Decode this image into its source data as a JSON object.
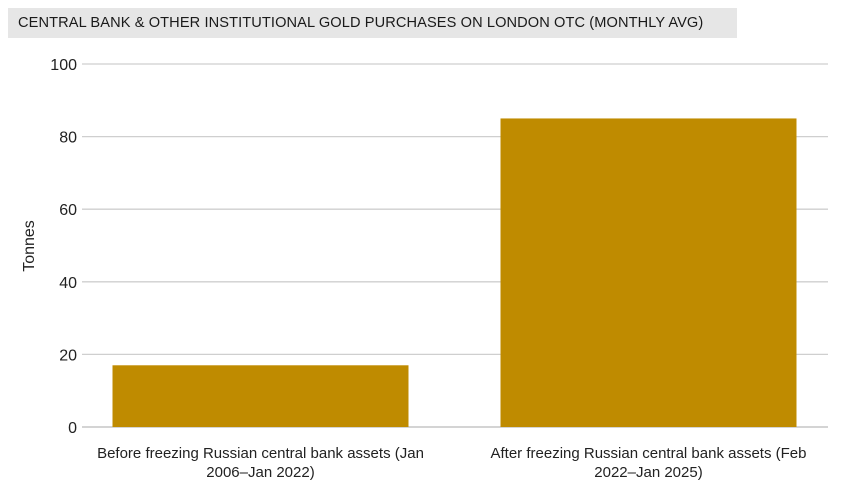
{
  "title": "CENTRAL BANK & OTHER INSTITUTIONAL GOLD PURCHASES ON LONDON OTC (MONTHLY AVG)",
  "colors": {
    "bar": "#bf8b00",
    "grid": "#cfcfcf",
    "title_bg": "#e6e6e6"
  },
  "chart_data": {
    "type": "bar",
    "title": "CENTRAL BANK & OTHER INSTITUTIONAL GOLD PURCHASES ON LONDON OTC (MONTHLY AVG)",
    "xlabel": "",
    "ylabel": "Tonnes",
    "ylim": [
      0,
      100
    ],
    "yticks": [
      0,
      20,
      40,
      60,
      80,
      100
    ],
    "grid": true,
    "categories": [
      [
        "Before freezing Russian central bank assets (Jan",
        "2006–Jan 2022)"
      ],
      [
        "After freezing Russian central bank assets (Feb",
        "2022–Jan 2025)"
      ]
    ],
    "values": [
      17,
      85
    ]
  }
}
